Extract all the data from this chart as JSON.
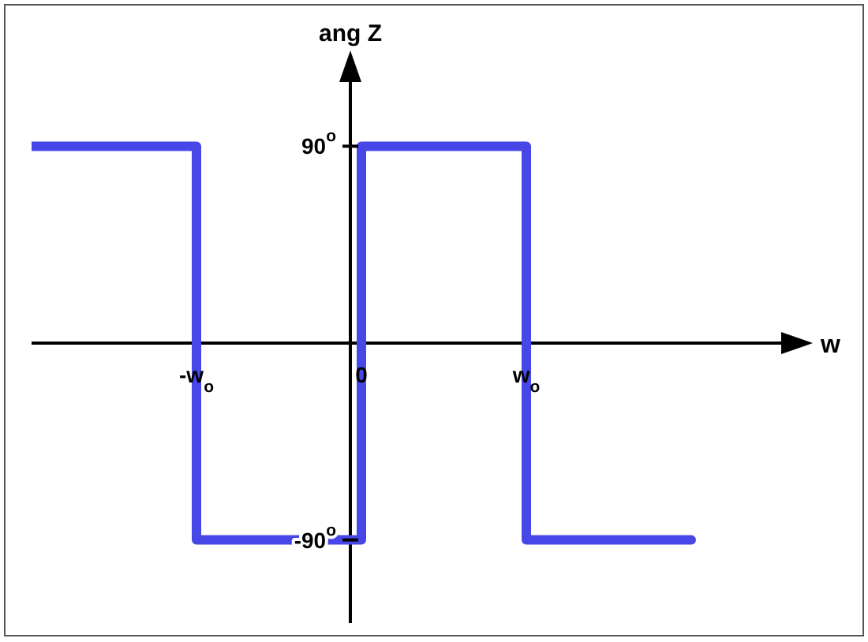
{
  "chart_data": {
    "type": "step",
    "xlabel": "w",
    "ylabel": "ang Z",
    "categories": [
      null,
      "-w$_{o}$",
      "0",
      "w$_{o}$",
      null
    ],
    "series": [
      {
        "color": "#4747e8",
        "values": [
          90,
          -90,
          90,
          -90,
          -90
        ]
      }
    ],
    "ylim": [
      -128,
      128
    ],
    "yticks": [
      {
        "value": 90,
        "label": "90$^{o}$"
      },
      {
        "value": -90,
        "label": "-90$^{o}$"
      }
    ]
  }
}
